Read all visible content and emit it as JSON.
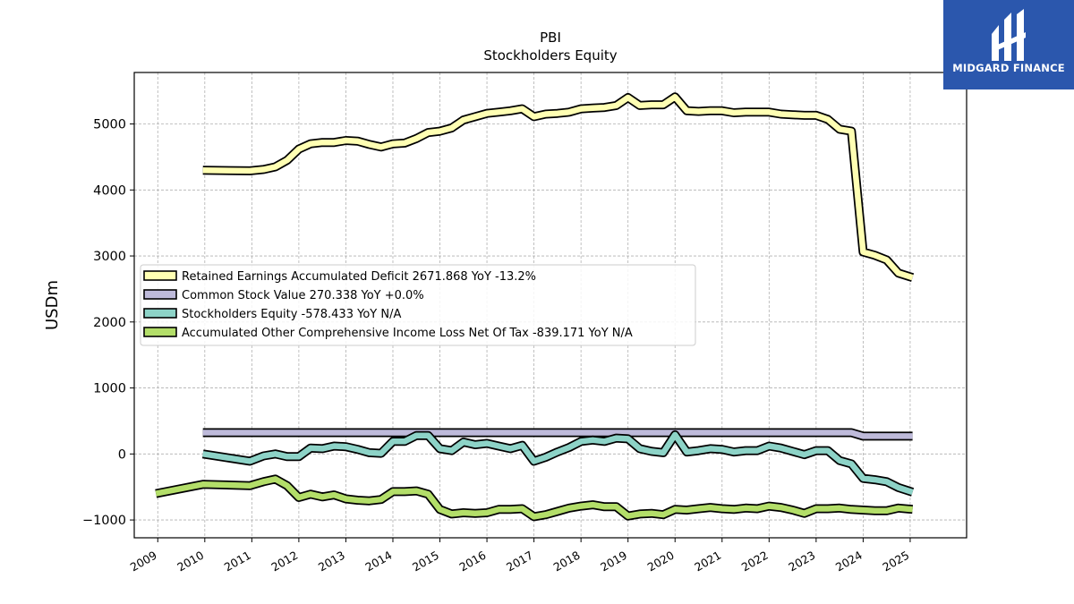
{
  "brand": {
    "name": "MIDGARD FINANCE",
    "color": "#2b57ad"
  },
  "chart_data": {
    "type": "line",
    "title": "PBI",
    "subtitle": "Stockholders  Equity",
    "ylabel": "USDm",
    "xlabel": "",
    "xlim": [
      2008.5,
      2026.2
    ],
    "ylim": [
      -1270,
      5780
    ],
    "xticks": [
      "2009",
      "2010",
      "2011",
      "2012",
      "2013",
      "2014",
      "2015",
      "2016",
      "2017",
      "2018",
      "2019",
      "2020",
      "2021",
      "2022",
      "2023",
      "2024",
      "2025"
    ],
    "yticks": [
      -1000,
      0,
      1000,
      2000,
      3000,
      4000,
      5000
    ],
    "grid": true,
    "legend_position": "center-left",
    "series": [
      {
        "name": "Retained Earnings Accumulated Deficit",
        "legend": "Retained Earnings Accumulated Deficit  2671.868 YoY -13.2%",
        "color": "#ffffb3",
        "x": [
          2009.96,
          2010.96,
          2011.25,
          2011.5,
          2011.75,
          2012.0,
          2012.25,
          2012.5,
          2012.75,
          2013.0,
          2013.25,
          2013.5,
          2013.75,
          2014.0,
          2014.25,
          2014.5,
          2014.75,
          2015.0,
          2015.25,
          2015.5,
          2015.75,
          2016.0,
          2016.25,
          2016.5,
          2016.75,
          2017.0,
          2017.25,
          2017.5,
          2017.75,
          2018.0,
          2018.25,
          2018.5,
          2018.75,
          2019.0,
          2019.25,
          2019.5,
          2019.75,
          2020.0,
          2020.25,
          2020.5,
          2020.75,
          2021.0,
          2021.25,
          2021.5,
          2021.75,
          2022.0,
          2022.25,
          2022.5,
          2022.75,
          2023.0,
          2023.25,
          2023.5,
          2023.75,
          2024.0,
          2024.25,
          2024.5,
          2024.75,
          2025.05
        ],
        "y": [
          4300,
          4290,
          4310,
          4350,
          4450,
          4620,
          4700,
          4720,
          4720,
          4750,
          4740,
          4690,
          4650,
          4700,
          4710,
          4780,
          4870,
          4890,
          4940,
          5060,
          5110,
          5160,
          5180,
          5200,
          5230,
          5110,
          5150,
          5160,
          5180,
          5230,
          5240,
          5250,
          5280,
          5400,
          5280,
          5290,
          5290,
          5410,
          5200,
          5190,
          5200,
          5200,
          5170,
          5180,
          5180,
          5180,
          5150,
          5140,
          5130,
          5130,
          5070,
          4920,
          4890,
          3060,
          3010,
          2940,
          2740,
          2672
        ]
      },
      {
        "name": "Common Stock Value",
        "legend": "Common Stock Value  270.338 YoY +0.0%",
        "color": "#bebada",
        "x": [
          2009.96,
          2023.75,
          2024.0,
          2024.5,
          2025.05
        ],
        "y": [
          323,
          323,
          270,
          270,
          270
        ]
      },
      {
        "name": "Stockholders Equity",
        "legend": "Stockholders Equity  -578.433 YoY N/A",
        "color": "#8dd3c7",
        "x": [
          2009.96,
          2010.96,
          2011.25,
          2011.5,
          2011.75,
          2012.0,
          2012.25,
          2012.5,
          2012.75,
          2013.0,
          2013.25,
          2013.5,
          2013.75,
          2014.0,
          2014.25,
          2014.5,
          2014.75,
          2015.0,
          2015.25,
          2015.5,
          2015.75,
          2016.0,
          2016.25,
          2016.5,
          2016.75,
          2017.0,
          2017.25,
          2017.5,
          2017.75,
          2018.0,
          2018.25,
          2018.5,
          2018.75,
          2019.0,
          2019.25,
          2019.5,
          2019.75,
          2020.0,
          2020.25,
          2020.5,
          2020.75,
          2021.0,
          2021.25,
          2021.5,
          2021.75,
          2022.0,
          2022.25,
          2022.5,
          2022.75,
          2023.0,
          2023.25,
          2023.5,
          2023.75,
          2024.0,
          2024.25,
          2024.5,
          2024.75,
          2025.05
        ],
        "y": [
          0,
          -110,
          -30,
          0,
          -40,
          -40,
          90,
          80,
          120,
          110,
          70,
          20,
          10,
          190,
          190,
          280,
          280,
          80,
          50,
          180,
          140,
          160,
          120,
          80,
          130,
          -110,
          -50,
          30,
          100,
          190,
          210,
          190,
          240,
          230,
          80,
          40,
          20,
          290,
          30,
          50,
          80,
          70,
          30,
          50,
          50,
          120,
          90,
          40,
          -10,
          50,
          50,
          -100,
          -150,
          -370,
          -390,
          -420,
          -510,
          -578
        ]
      },
      {
        "name": "Accumulated Other Comprehensive Income Loss Net Of Tax",
        "legend": "Accumulated Other Comprehensive Income Loss Net Of Tax  -839.171 YoY N/A",
        "color": "#b3de69",
        "x": [
          2008.96,
          2009.96,
          2010.96,
          2011.25,
          2011.5,
          2011.75,
          2012.0,
          2012.25,
          2012.5,
          2012.75,
          2013.0,
          2013.25,
          2013.5,
          2013.75,
          2014.0,
          2014.25,
          2014.5,
          2014.75,
          2015.0,
          2015.25,
          2015.5,
          2015.75,
          2016.0,
          2016.25,
          2016.5,
          2016.75,
          2017.0,
          2017.25,
          2017.5,
          2017.75,
          2018.0,
          2018.25,
          2018.5,
          2018.75,
          2019.0,
          2019.25,
          2019.5,
          2019.75,
          2020.0,
          2020.25,
          2020.5,
          2020.75,
          2021.0,
          2021.25,
          2021.5,
          2021.75,
          2022.0,
          2022.25,
          2022.5,
          2022.75,
          2023.0,
          2023.25,
          2023.5,
          2023.75,
          2024.0,
          2024.25,
          2024.5,
          2024.75,
          2025.05
        ],
        "y": [
          -600,
          -460,
          -480,
          -420,
          -380,
          -480,
          -660,
          -610,
          -650,
          -620,
          -680,
          -700,
          -710,
          -690,
          -570,
          -570,
          -560,
          -610,
          -840,
          -910,
          -890,
          -900,
          -890,
          -840,
          -840,
          -830,
          -950,
          -920,
          -870,
          -820,
          -790,
          -770,
          -800,
          -800,
          -940,
          -910,
          -900,
          -920,
          -840,
          -850,
          -830,
          -810,
          -830,
          -840,
          -820,
          -830,
          -790,
          -810,
          -850,
          -900,
          -830,
          -830,
          -820,
          -840,
          -850,
          -860,
          -860,
          -820,
          -839
        ]
      }
    ]
  }
}
